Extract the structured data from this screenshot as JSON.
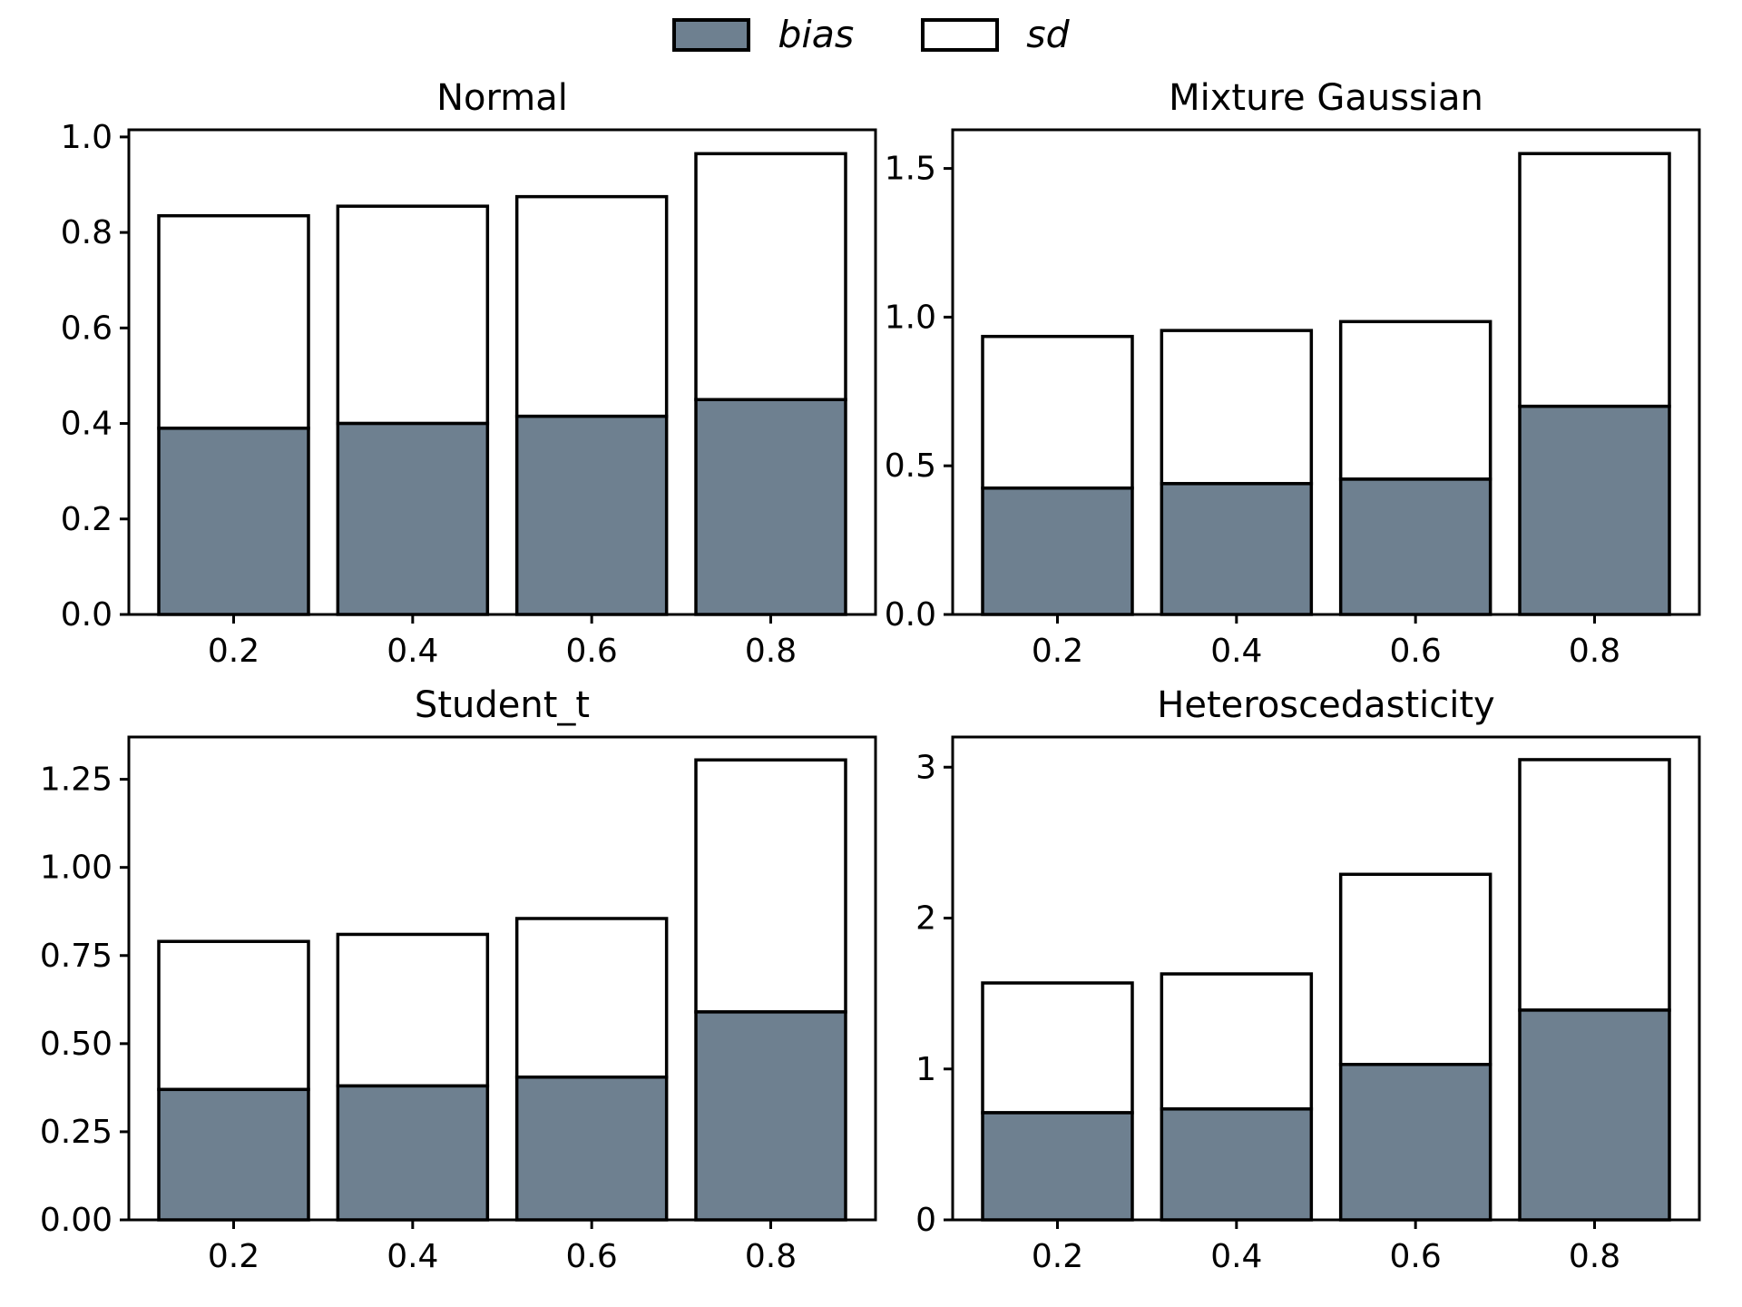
{
  "figure": {
    "background_color": "#ffffff",
    "bias_fill_color": "#6e8090",
    "sd_fill_color": "#ffffff",
    "edge_color": "#000000"
  },
  "legend": {
    "position": "top-center",
    "entries": [
      {
        "label": "bias",
        "swatch_color": "#6e8090"
      },
      {
        "label": "sd",
        "swatch_color": "#ffffff"
      }
    ]
  },
  "chart_data": [
    {
      "type": "bar",
      "stacked": true,
      "title": "Normal",
      "categories": [
        "0.2",
        "0.4",
        "0.6",
        "0.8"
      ],
      "series": [
        {
          "name": "bias",
          "values": [
            0.39,
            0.4,
            0.415,
            0.45
          ]
        },
        {
          "name": "sd",
          "values": [
            0.445,
            0.455,
            0.46,
            0.515
          ]
        }
      ],
      "stack_totals": [
        0.835,
        0.855,
        0.875,
        0.965
      ],
      "ylim": [
        0,
        1.015
      ],
      "ytick_values": [
        0.0,
        0.2,
        0.4,
        0.6,
        0.8,
        1.0
      ],
      "ytick_labels": [
        "0.0",
        "0.2",
        "0.4",
        "0.6",
        "0.8",
        "1.0"
      ],
      "xlabel": "",
      "ylabel": "",
      "grid": false
    },
    {
      "type": "bar",
      "stacked": true,
      "title": "Mixture Gaussian",
      "categories": [
        "0.2",
        "0.4",
        "0.6",
        "0.8"
      ],
      "series": [
        {
          "name": "bias",
          "values": [
            0.425,
            0.44,
            0.455,
            0.7
          ]
        },
        {
          "name": "sd",
          "values": [
            0.51,
            0.515,
            0.53,
            0.85
          ]
        }
      ],
      "stack_totals": [
        0.935,
        0.955,
        0.985,
        1.55
      ],
      "ylim": [
        0,
        1.63
      ],
      "ytick_values": [
        0.0,
        0.5,
        1.0,
        1.5
      ],
      "ytick_labels": [
        "0.0",
        "0.5",
        "1.0",
        "1.5"
      ],
      "xlabel": "",
      "ylabel": "",
      "grid": false
    },
    {
      "type": "bar",
      "stacked": true,
      "title": "Student_t",
      "categories": [
        "0.2",
        "0.4",
        "0.6",
        "0.8"
      ],
      "series": [
        {
          "name": "bias",
          "values": [
            0.37,
            0.38,
            0.405,
            0.59
          ]
        },
        {
          "name": "sd",
          "values": [
            0.42,
            0.43,
            0.45,
            0.715
          ]
        }
      ],
      "stack_totals": [
        0.79,
        0.81,
        0.855,
        1.305
      ],
      "ylim": [
        0,
        1.37
      ],
      "ytick_values": [
        0.0,
        0.25,
        0.5,
        0.75,
        1.0,
        1.25
      ],
      "ytick_labels": [
        "0.00",
        "0.25",
        "0.50",
        "0.75",
        "1.00",
        "1.25"
      ],
      "xlabel": "",
      "ylabel": "",
      "grid": false
    },
    {
      "type": "bar",
      "stacked": true,
      "title": "Heteroscedasticity",
      "categories": [
        "0.2",
        "0.4",
        "0.6",
        "0.8"
      ],
      "series": [
        {
          "name": "bias",
          "values": [
            0.71,
            0.735,
            1.03,
            1.39
          ]
        },
        {
          "name": "sd",
          "values": [
            0.86,
            0.895,
            1.26,
            1.66
          ]
        }
      ],
      "stack_totals": [
        1.57,
        1.63,
        2.29,
        3.05
      ],
      "ylim": [
        0,
        3.2
      ],
      "ytick_values": [
        0,
        1,
        2,
        3
      ],
      "ytick_labels": [
        "0",
        "1",
        "2",
        "3"
      ],
      "xlabel": "",
      "ylabel": "",
      "grid": false
    }
  ]
}
